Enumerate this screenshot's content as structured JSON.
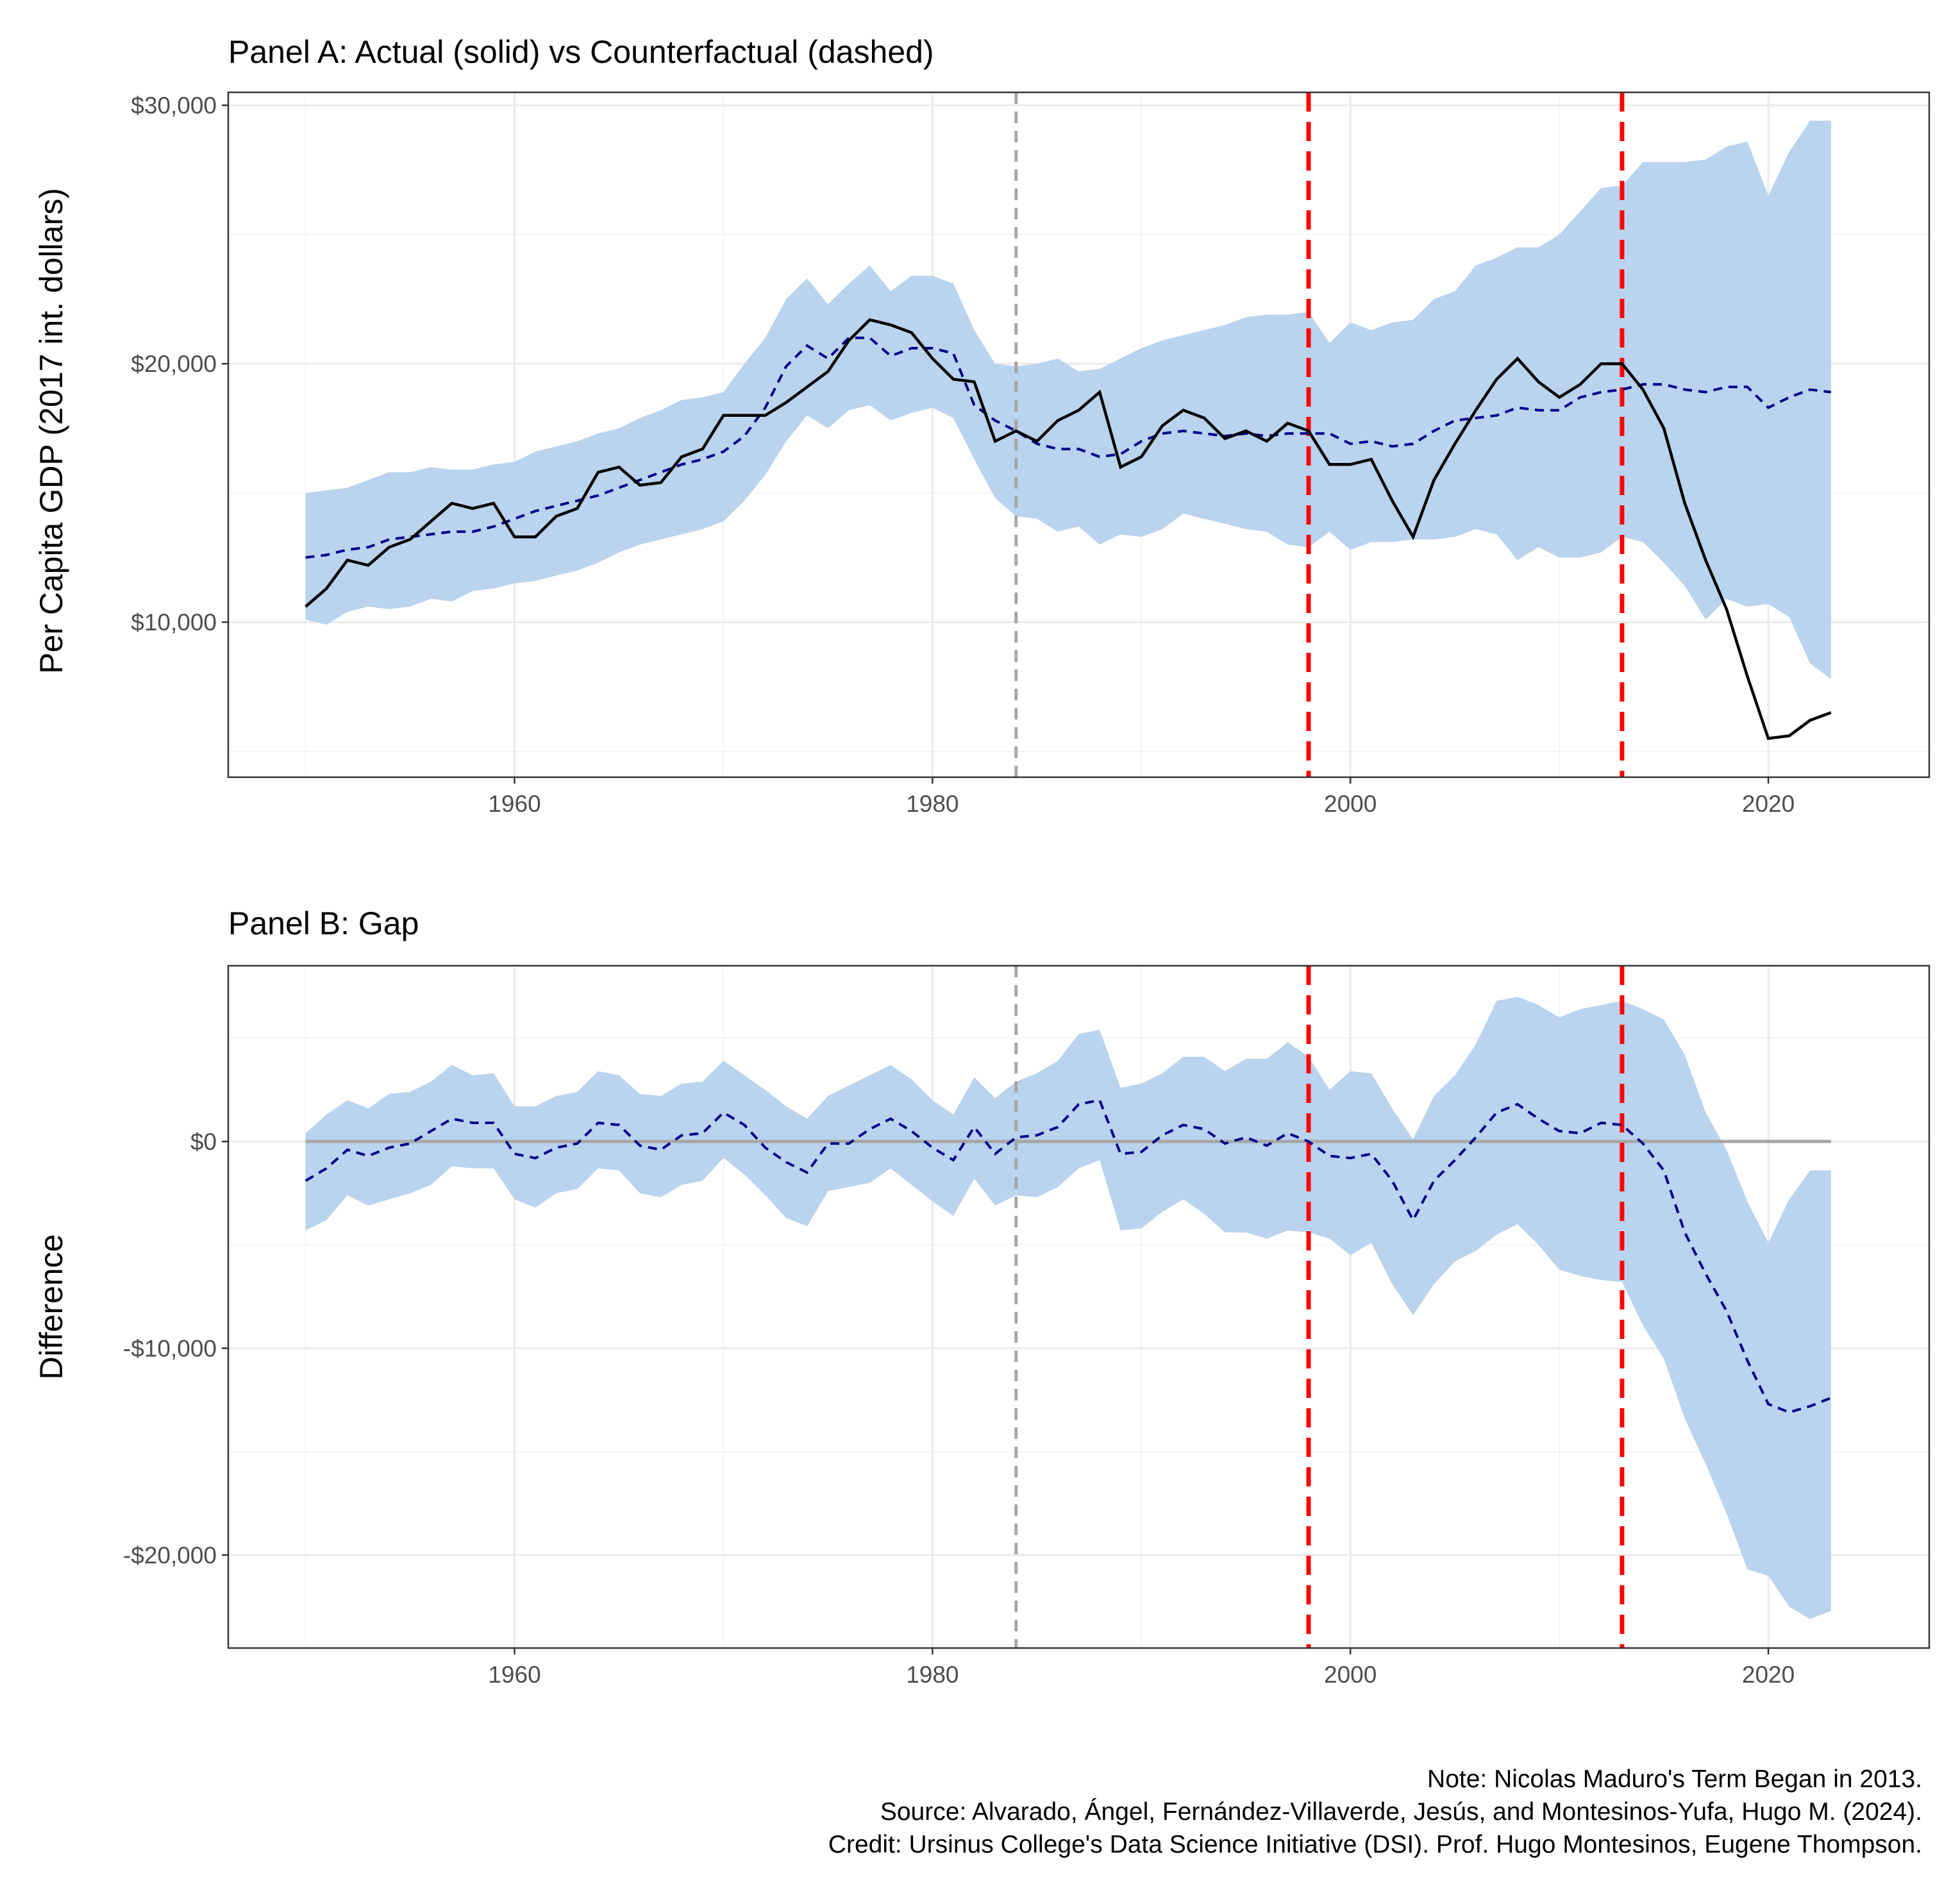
{
  "chart_data": [
    {
      "type": "line",
      "title": "Panel A: Actual (solid) vs Counterfactual (dashed)",
      "ylabel": "Per Capita GDP (2017 int. dollars)",
      "xlabel": "",
      "xlim": [
        1946.3,
        2027.7
      ],
      "ylim": [
        4000,
        30500
      ],
      "x_ticks": [
        1960,
        1980,
        2000,
        2020
      ],
      "x_tick_labels": [
        "1960",
        "1980",
        "2000",
        "2020"
      ],
      "y_ticks": [
        10000,
        20000,
        30000
      ],
      "y_tick_labels": [
        "$10,000",
        "$20,000",
        "$30,000"
      ],
      "grid": true,
      "vlines": [
        {
          "x": 1984,
          "color": "#a6a6a6",
          "style": "dashed"
        },
        {
          "x": 1998,
          "color": "#ff0000",
          "style": "dashed"
        },
        {
          "x": 2013,
          "color": "#ff0000",
          "style": "dashed"
        }
      ],
      "colors": {
        "band": "#bad3ee",
        "actual": "#000000",
        "counterfactual": "#00008b"
      },
      "x": [
        1950,
        1951,
        1952,
        1953,
        1954,
        1955,
        1956,
        1957,
        1958,
        1959,
        1960,
        1961,
        1962,
        1963,
        1964,
        1965,
        1966,
        1967,
        1968,
        1969,
        1970,
        1971,
        1972,
        1973,
        1974,
        1975,
        1976,
        1977,
        1978,
        1979,
        1980,
        1981,
        1982,
        1983,
        1984,
        1985,
        1986,
        1987,
        1988,
        1989,
        1990,
        1991,
        1992,
        1993,
        1994,
        1995,
        1996,
        1997,
        1998,
        1999,
        2000,
        2001,
        2002,
        2003,
        2004,
        2005,
        2006,
        2007,
        2008,
        2009,
        2010,
        2011,
        2012,
        2013,
        2014,
        2015,
        2016,
        2017,
        2018,
        2019,
        2020,
        2021,
        2022,
        2023
      ],
      "series": [
        {
          "name": "Actual",
          "style": "solid",
          "values": [
            10600,
            11300,
            12400,
            12200,
            12900,
            13200,
            13900,
            14600,
            14400,
            14600,
            13300,
            13300,
            14100,
            14400,
            15800,
            16000,
            15300,
            15400,
            16400,
            16700,
            18000,
            18000,
            18000,
            18500,
            19100,
            19700,
            20900,
            21700,
            21500,
            21200,
            20200,
            19400,
            19300,
            17000,
            17400,
            17000,
            17800,
            18200,
            18900,
            16000,
            16400,
            17600,
            18200,
            17900,
            17100,
            17400,
            17000,
            17700,
            17400,
            16100,
            16100,
            16300,
            14700,
            13300,
            15500,
            16900,
            18200,
            19400,
            20200,
            19300,
            18700,
            19200,
            20000,
            20000,
            19000,
            17500,
            14600,
            12400,
            10500,
            7900,
            5500,
            5600,
            6200,
            6500
          ]
        },
        {
          "name": "Counterfactual",
          "style": "dashed",
          "values": [
            12500,
            12600,
            12800,
            12900,
            13200,
            13300,
            13400,
            13500,
            13500,
            13700,
            14000,
            14300,
            14500,
            14700,
            14900,
            15200,
            15500,
            15800,
            16100,
            16300,
            16600,
            17200,
            18300,
            19900,
            20700,
            20200,
            21000,
            21000,
            20300,
            20600,
            20600,
            20400,
            18400,
            17800,
            17400,
            16900,
            16700,
            16700,
            16400,
            16500,
            17000,
            17300,
            17400,
            17300,
            17200,
            17300,
            17200,
            17300,
            17300,
            17300,
            16900,
            17000,
            16800,
            16900,
            17400,
            17800,
            17900,
            18000,
            18300,
            18200,
            18200,
            18700,
            18900,
            19000,
            19200,
            19200,
            19000,
            18900,
            19100,
            19100,
            18300,
            18700,
            19000,
            18900
          ]
        },
        {
          "name": "Band upper",
          "style": "band",
          "values": [
            15000,
            15100,
            15200,
            15500,
            15800,
            15800,
            16000,
            15900,
            15900,
            16100,
            16200,
            16600,
            16800,
            17000,
            17300,
            17500,
            17900,
            18200,
            18600,
            18700,
            18900,
            20000,
            21000,
            22500,
            23300,
            22300,
            23100,
            23800,
            22800,
            23400,
            23400,
            23100,
            21300,
            20000,
            19900,
            20000,
            20200,
            19700,
            19800,
            20200,
            20600,
            20900,
            21100,
            21300,
            21500,
            21800,
            21900,
            21900,
            22000,
            20800,
            21600,
            21300,
            21600,
            21700,
            22500,
            22800,
            23800,
            24100,
            24500,
            24500,
            25000,
            25900,
            26800,
            26900,
            27800,
            27800,
            27800,
            27900,
            28400,
            28600,
            26500,
            28200,
            29400,
            29400
          ]
        },
        {
          "name": "Band lower",
          "style": "band",
          "values": [
            10100,
            9900,
            10400,
            10600,
            10500,
            10600,
            10900,
            10800,
            11200,
            11300,
            11500,
            11600,
            11800,
            12000,
            12300,
            12700,
            13000,
            13200,
            13400,
            13600,
            13900,
            14700,
            15700,
            17000,
            18000,
            17500,
            18200,
            18400,
            17800,
            18100,
            18300,
            17900,
            16300,
            14800,
            14100,
            14000,
            13500,
            13700,
            13000,
            13400,
            13300,
            13600,
            14200,
            14000,
            13800,
            13600,
            13500,
            13000,
            12900,
            13500,
            12800,
            13100,
            13100,
            13200,
            13200,
            13300,
            13600,
            13400,
            12400,
            12900,
            12500,
            12500,
            12700,
            13300,
            13100,
            12300,
            11400,
            10100,
            10900,
            10600,
            10700,
            10200,
            8400,
            7800
          ]
        }
      ]
    },
    {
      "type": "line",
      "title": "Panel B: Gap",
      "ylabel": "Difference",
      "xlabel": "",
      "xlim": [
        1946.3,
        2027.7
      ],
      "ylim": [
        -24500,
        8500
      ],
      "x_ticks": [
        1960,
        1980,
        2000,
        2020
      ],
      "x_tick_labels": [
        "1960",
        "1980",
        "2000",
        "2020"
      ],
      "y_ticks": [
        -20000,
        -10000,
        0
      ],
      "y_tick_labels": [
        "-$20,000",
        "-$10,000",
        "$0"
      ],
      "grid": true,
      "hline": {
        "y": 0,
        "color": "#a6a6a6"
      },
      "vlines": [
        {
          "x": 1984,
          "color": "#a6a6a6",
          "style": "dashed"
        },
        {
          "x": 1998,
          "color": "#ff0000",
          "style": "dashed"
        },
        {
          "x": 2013,
          "color": "#ff0000",
          "style": "dashed"
        }
      ],
      "colors": {
        "band": "#bad3ee",
        "gap": "#00008b"
      },
      "x": [
        1950,
        1951,
        1952,
        1953,
        1954,
        1955,
        1956,
        1957,
        1958,
        1959,
        1960,
        1961,
        1962,
        1963,
        1964,
        1965,
        1966,
        1967,
        1968,
        1969,
        1970,
        1971,
        1972,
        1973,
        1974,
        1975,
        1976,
        1977,
        1978,
        1979,
        1980,
        1981,
        1982,
        1983,
        1984,
        1985,
        1986,
        1987,
        1988,
        1989,
        1990,
        1991,
        1992,
        1993,
        1994,
        1995,
        1996,
        1997,
        1998,
        1999,
        2000,
        2001,
        2002,
        2003,
        2004,
        2005,
        2006,
        2007,
        2008,
        2009,
        2010,
        2011,
        2012,
        2013,
        2014,
        2015,
        2016,
        2017,
        2018,
        2019,
        2020,
        2021,
        2022,
        2023
      ],
      "series": [
        {
          "name": "Gap",
          "style": "dashed",
          "values": [
            -1900,
            -1300,
            -400,
            -700,
            -300,
            -100,
            500,
            1100,
            900,
            900,
            -600,
            -800,
            -300,
            -100,
            900,
            800,
            -200,
            -400,
            300,
            400,
            1400,
            800,
            -300,
            -1000,
            -1500,
            -100,
            -100,
            600,
            1100,
            500,
            -300,
            -900,
            700,
            -600,
            200,
            300,
            700,
            1800,
            2000,
            -600,
            -500,
            300,
            800,
            600,
            -100,
            200,
            -200,
            400,
            0,
            -700,
            -800,
            -600,
            -1900,
            -3800,
            -1900,
            -900,
            200,
            1400,
            1800,
            1100,
            500,
            400,
            900,
            800,
            -100,
            -1400,
            -4400,
            -6400,
            -8200,
            -10600,
            -12700,
            -13100,
            -12800,
            -12400
          ]
        },
        {
          "name": "Band upper",
          "style": "band",
          "values": [
            400,
            1300,
            2000,
            1600,
            2300,
            2400,
            2900,
            3700,
            3200,
            3300,
            1700,
            1700,
            2200,
            2400,
            3400,
            3200,
            2300,
            2200,
            2800,
            2900,
            3900,
            3200,
            2500,
            1700,
            1100,
            2200,
            2700,
            3200,
            3700,
            3000,
            2000,
            1300,
            3100,
            2100,
            2900,
            3300,
            3900,
            5200,
            5400,
            2600,
            2800,
            3300,
            4100,
            4100,
            3400,
            4000,
            4000,
            4800,
            4100,
            2500,
            3400,
            3300,
            1600,
            100,
            2200,
            3200,
            4700,
            6800,
            7000,
            6600,
            6000,
            6400,
            6600,
            6800,
            6400,
            5900,
            4200,
            1400,
            -400,
            -2900,
            -4900,
            -2800,
            -1400,
            -1400
          ]
        },
        {
          "name": "Band lower",
          "style": "band",
          "values": [
            -4300,
            -3800,
            -2600,
            -3100,
            -2800,
            -2500,
            -2100,
            -1200,
            -1300,
            -1300,
            -2800,
            -3200,
            -2500,
            -2300,
            -1300,
            -1400,
            -2500,
            -2700,
            -2100,
            -1900,
            -800,
            -1600,
            -2600,
            -3700,
            -4100,
            -2400,
            -2200,
            -2000,
            -1300,
            -2100,
            -2900,
            -3600,
            -1800,
            -3100,
            -2600,
            -2700,
            -2200,
            -1300,
            -900,
            -4300,
            -4200,
            -3400,
            -2800,
            -3500,
            -4400,
            -4400,
            -4700,
            -4300,
            -4400,
            -4700,
            -5500,
            -4900,
            -6900,
            -8400,
            -6900,
            -5800,
            -5300,
            -4500,
            -4000,
            -5000,
            -6200,
            -6500,
            -6700,
            -6800,
            -8900,
            -10500,
            -13400,
            -15600,
            -18000,
            -20700,
            -21000,
            -22500,
            -23100,
            -22700
          ]
        }
      ]
    }
  ],
  "note": {
    "lines": [
      "Note: Nicolas Maduro's Term Began in 2013.",
      "Source: Alvarado, Ángel, Fernández-Villaverde, Jesús, and Montesinos-Yufa, Hugo M. (2024).",
      "Credit: Ursinus College's Data Science Initiative (DSI). Prof. Hugo Montesinos, Eugene Thompson."
    ]
  }
}
